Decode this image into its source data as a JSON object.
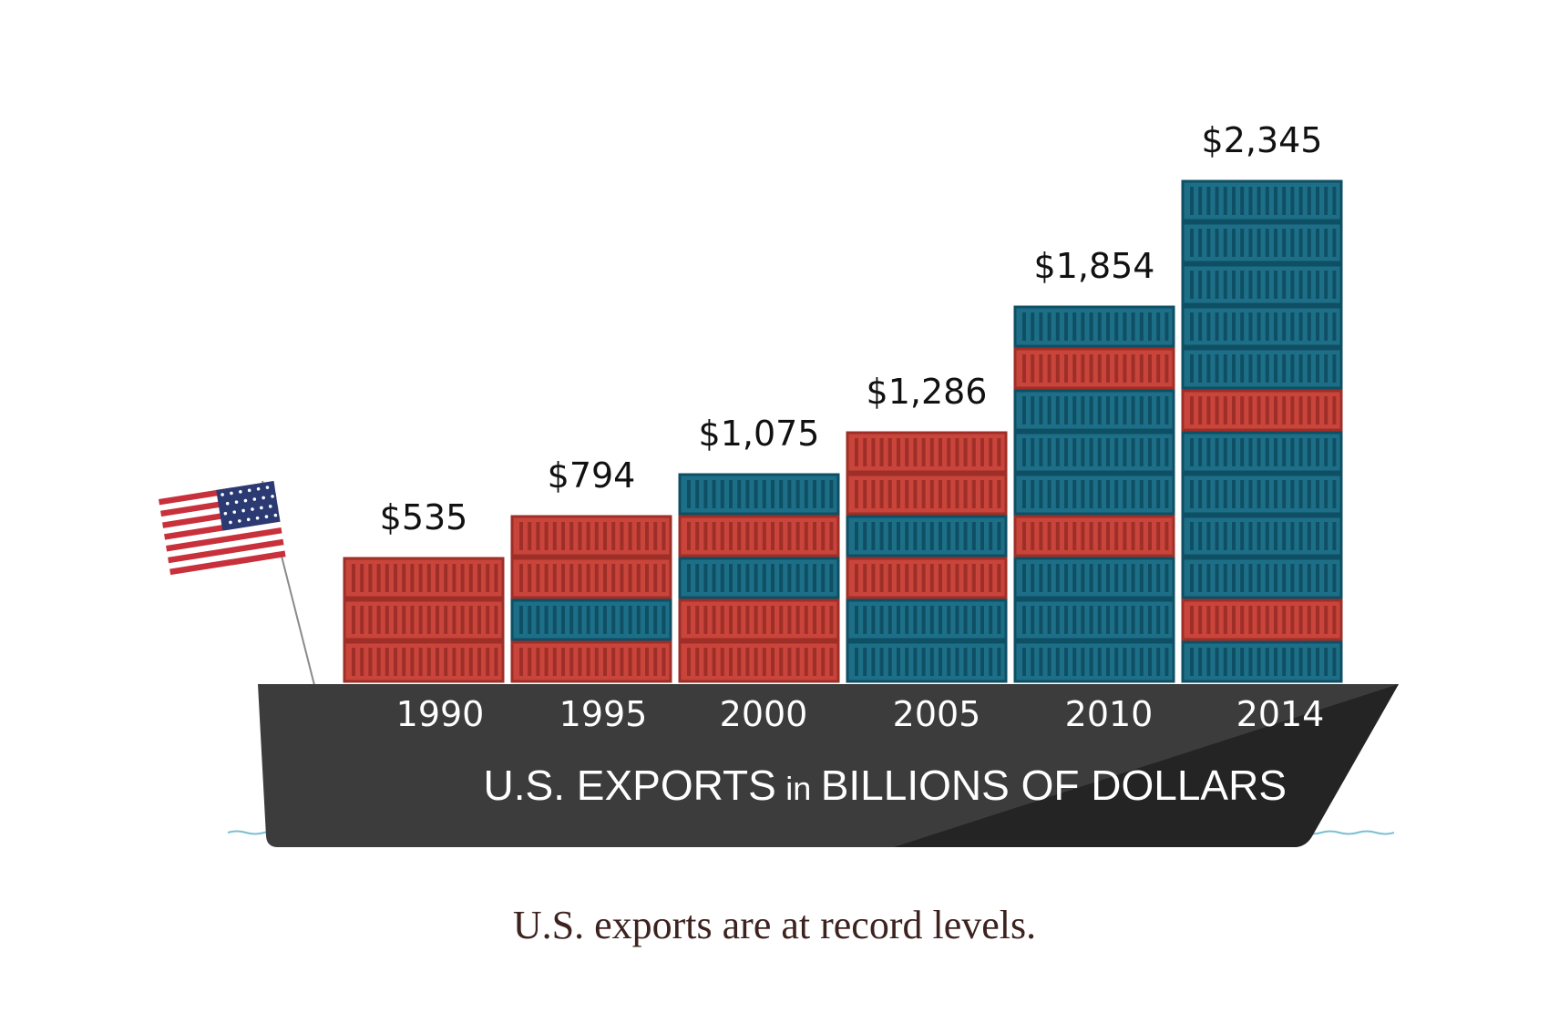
{
  "chart_data": {
    "type": "bar",
    "title": "U.S. EXPORTS in BILLIONS OF DOLLARS",
    "categories": [
      "1990",
      "1995",
      "2000",
      "2005",
      "2010",
      "2014"
    ],
    "values": [
      535,
      794,
      1075,
      1286,
      1854,
      2345
    ],
    "value_labels": [
      "$535",
      "$794",
      "$1,075",
      "$1,286",
      "$1,854",
      "$2,345"
    ],
    "unit": "billions of dollars",
    "container_stacks_bottom_to_top": [
      [
        "red",
        "red",
        "red"
      ],
      [
        "red",
        "blue",
        "red",
        "red"
      ],
      [
        "red",
        "red",
        "blue",
        "red",
        "blue"
      ],
      [
        "blue",
        "blue",
        "red",
        "blue",
        "red",
        "red"
      ],
      [
        "blue",
        "blue",
        "blue",
        "red",
        "blue",
        "blue",
        "blue",
        "red",
        "blue"
      ],
      [
        "blue",
        "red",
        "blue",
        "blue",
        "blue",
        "blue",
        "red",
        "blue",
        "blue",
        "blue",
        "blue",
        "blue"
      ]
    ],
    "grid": false,
    "legend": "none"
  },
  "title_parts": {
    "a": "U.S. EXPORTS",
    "b": "in",
    "c": "BILLIONS OF DOLLARS"
  },
  "caption": "U.S. exports are at record levels.",
  "colors": {
    "container_red": "#c9443a",
    "container_red_stripe": "#9e2f28",
    "container_blue": "#1d6f88",
    "container_blue_stripe": "#0f4f63",
    "hull": "#3c3c3c",
    "hull_shadow": "#242424",
    "water": "#7bbfd4",
    "flag_red": "#c8313b",
    "flag_blue": "#2b3a73",
    "label_text": "#111111",
    "caption_text": "#3d2320"
  },
  "icons": [
    "us-flag-icon",
    "flag-pole",
    "ship-hull"
  ]
}
